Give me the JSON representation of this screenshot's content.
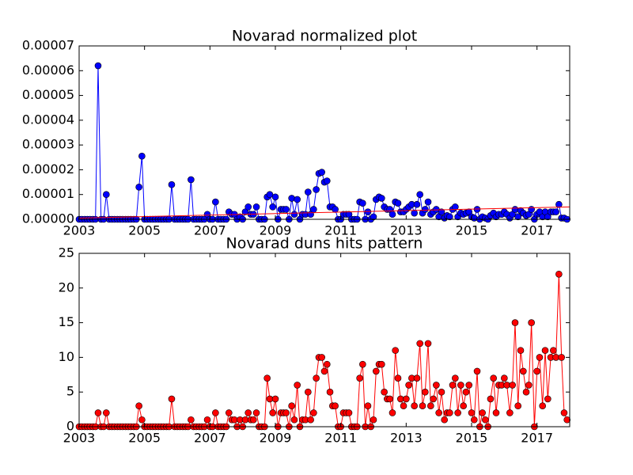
{
  "chart_data": [
    {
      "type": "line",
      "title": "Novarad normalized plot",
      "xlim": [
        2003,
        2018
      ],
      "xticks": [
        2003,
        2005,
        2007,
        2009,
        2011,
        2013,
        2015,
        2017
      ],
      "ylim": [
        0,
        7e-05
      ],
      "yticks": [
        {
          "value": 0,
          "label": "0.00000"
        },
        {
          "value": 1e-05,
          "label": "0.00001"
        },
        {
          "value": 2e-05,
          "label": "0.00002"
        },
        {
          "value": 3e-05,
          "label": "0.00003"
        },
        {
          "value": 4e-05,
          "label": "0.00004"
        },
        {
          "value": 5e-05,
          "label": "0.00005"
        },
        {
          "value": 6e-05,
          "label": "0.00006"
        },
        {
          "value": 7e-05,
          "label": "0.00007"
        }
      ],
      "series": [
        {
          "color": "#0000ff",
          "markers": true,
          "x": [
            2003.0,
            2003.08,
            2003.17,
            2003.25,
            2003.33,
            2003.42,
            2003.5,
            2003.58,
            2003.67,
            2003.75,
            2003.83,
            2003.92,
            2004.0,
            2004.08,
            2004.17,
            2004.25,
            2004.33,
            2004.42,
            2004.5,
            2004.58,
            2004.67,
            2004.75,
            2004.83,
            2004.92,
            2005.0,
            2005.08,
            2005.17,
            2005.25,
            2005.33,
            2005.42,
            2005.5,
            2005.58,
            2005.67,
            2005.75,
            2005.83,
            2005.92,
            2006.0,
            2006.08,
            2006.17,
            2006.25,
            2006.33,
            2006.42,
            2006.5,
            2006.58,
            2006.67,
            2006.75,
            2006.83,
            2006.92,
            2007.0,
            2007.08,
            2007.17,
            2007.25,
            2007.33,
            2007.42,
            2007.5,
            2007.58,
            2007.67,
            2007.75,
            2007.83,
            2007.92,
            2008.0,
            2008.08,
            2008.17,
            2008.25,
            2008.33,
            2008.42,
            2008.5,
            2008.58,
            2008.67,
            2008.75,
            2008.83,
            2008.92,
            2009.0,
            2009.08,
            2009.17,
            2009.25,
            2009.33,
            2009.42,
            2009.5,
            2009.58,
            2009.67,
            2009.75,
            2009.83,
            2009.92,
            2010.0,
            2010.08,
            2010.17,
            2010.25,
            2010.33,
            2010.42,
            2010.5,
            2010.58,
            2010.67,
            2010.75,
            2010.83,
            2010.92,
            2011.0,
            2011.08,
            2011.17,
            2011.25,
            2011.33,
            2011.42,
            2011.5,
            2011.58,
            2011.67,
            2011.75,
            2011.83,
            2011.92,
            2012.0,
            2012.08,
            2012.17,
            2012.25,
            2012.33,
            2012.42,
            2012.5,
            2012.58,
            2012.67,
            2012.75,
            2012.83,
            2012.92,
            2013.0,
            2013.08,
            2013.17,
            2013.25,
            2013.33,
            2013.42,
            2013.5,
            2013.58,
            2013.67,
            2013.75,
            2013.83,
            2013.92,
            2014.0,
            2014.08,
            2014.17,
            2014.25,
            2014.33,
            2014.42,
            2014.5,
            2014.58,
            2014.67,
            2014.75,
            2014.83,
            2014.92,
            2015.0,
            2015.08,
            2015.17,
            2015.25,
            2015.33,
            2015.42,
            2015.5,
            2015.58,
            2015.67,
            2015.75,
            2015.83,
            2015.92,
            2016.0,
            2016.08,
            2016.17,
            2016.25,
            2016.33,
            2016.42,
            2016.5,
            2016.58,
            2016.67,
            2016.75,
            2016.83,
            2016.92,
            2017.0,
            2017.08,
            2017.17,
            2017.25,
            2017.33,
            2017.42,
            2017.5,
            2017.58,
            2017.67,
            2017.75,
            2017.83,
            2017.92
          ],
          "values": [
            0,
            0,
            0,
            0,
            0,
            0,
            0,
            6.2e-05,
            0,
            0,
            1e-05,
            0,
            0,
            0,
            0,
            0,
            0,
            0,
            0,
            0,
            0,
            0,
            1.3e-05,
            2.55e-05,
            0,
            0,
            0,
            0,
            0,
            0,
            0,
            0,
            0,
            0,
            1.4e-05,
            0,
            0,
            0,
            0,
            0,
            0,
            1.6e-05,
            0,
            0,
            0,
            0,
            0,
            2e-06,
            0,
            0,
            7e-06,
            0,
            0,
            0,
            0,
            3e-06,
            2e-06,
            2e-06,
            0,
            1e-06,
            0,
            3e-06,
            5e-06,
            2e-06,
            2e-06,
            5e-06,
            0,
            0,
            0,
            9e-06,
            1e-05,
            5e-06,
            9e-06,
            0,
            4e-06,
            4e-06,
            4e-06,
            0,
            8.5e-06,
            2e-06,
            8e-06,
            0,
            2e-06,
            2e-06,
            1.1e-05,
            2e-06,
            4e-06,
            1.2e-05,
            1.85e-05,
            1.9e-05,
            1.5e-05,
            1.55e-05,
            5e-06,
            5e-06,
            4e-06,
            0,
            0,
            2e-06,
            2e-06,
            2e-06,
            0,
            0,
            0,
            7e-06,
            6.5e-06,
            0,
            3e-06,
            0,
            1e-06,
            8e-06,
            9e-06,
            8.5e-06,
            5e-06,
            4e-06,
            4e-06,
            2e-06,
            7e-06,
            6.5e-06,
            3e-06,
            3e-06,
            4e-06,
            5e-06,
            6e-06,
            2.5e-06,
            6e-06,
            1e-05,
            2.5e-06,
            4e-06,
            7e-06,
            2e-06,
            3e-06,
            4e-06,
            1e-06,
            3e-06,
            5e-07,
            1.5e-06,
            1e-06,
            4e-06,
            5e-06,
            1e-06,
            2.5e-06,
            2e-06,
            2.5e-06,
            3e-06,
            1e-06,
            5e-07,
            4e-06,
            0,
            1e-06,
            5e-07,
            0,
            1.5e-06,
            2.5e-06,
            1e-06,
            2e-06,
            2e-06,
            3e-06,
            2e-06,
            5e-07,
            2e-06,
            4e-06,
            1e-06,
            3.5e-06,
            2.5e-06,
            1.5e-06,
            2e-06,
            4e-06,
            0,
            2e-06,
            3e-06,
            1e-06,
            3e-06,
            1e-06,
            3e-06,
            3e-06,
            3e-06,
            6e-06,
            5e-07,
            5e-07,
            0
          ]
        },
        {
          "color": "#ff0000",
          "markers": false,
          "x": [
            2003,
            2018
          ],
          "values": [
            5e-07,
            5e-06
          ]
        }
      ]
    },
    {
      "type": "line",
      "title": "Novarad duns hits pattern",
      "xlim": [
        2003,
        2018
      ],
      "xticks": [
        2003,
        2005,
        2007,
        2009,
        2011,
        2013,
        2015,
        2017
      ],
      "ylim": [
        0,
        25
      ],
      "yticks": [
        0,
        5,
        10,
        15,
        20,
        25
      ],
      "series": [
        {
          "color": "#ff0000",
          "markers": true,
          "x": [
            2003.0,
            2003.08,
            2003.17,
            2003.25,
            2003.33,
            2003.42,
            2003.5,
            2003.58,
            2003.67,
            2003.75,
            2003.83,
            2003.92,
            2004.0,
            2004.08,
            2004.17,
            2004.25,
            2004.33,
            2004.42,
            2004.5,
            2004.58,
            2004.67,
            2004.75,
            2004.83,
            2004.92,
            2005.0,
            2005.08,
            2005.17,
            2005.25,
            2005.33,
            2005.42,
            2005.5,
            2005.58,
            2005.67,
            2005.75,
            2005.83,
            2005.92,
            2006.0,
            2006.08,
            2006.17,
            2006.25,
            2006.33,
            2006.42,
            2006.5,
            2006.58,
            2006.67,
            2006.75,
            2006.83,
            2006.92,
            2007.0,
            2007.08,
            2007.17,
            2007.25,
            2007.33,
            2007.42,
            2007.5,
            2007.58,
            2007.67,
            2007.75,
            2007.83,
            2007.92,
            2008.0,
            2008.08,
            2008.17,
            2008.25,
            2008.33,
            2008.42,
            2008.5,
            2008.58,
            2008.67,
            2008.75,
            2008.83,
            2008.92,
            2009.0,
            2009.08,
            2009.17,
            2009.25,
            2009.33,
            2009.42,
            2009.5,
            2009.58,
            2009.67,
            2009.75,
            2009.83,
            2009.92,
            2010.0,
            2010.08,
            2010.17,
            2010.25,
            2010.33,
            2010.42,
            2010.5,
            2010.58,
            2010.67,
            2010.75,
            2010.83,
            2010.92,
            2011.0,
            2011.08,
            2011.17,
            2011.25,
            2011.33,
            2011.42,
            2011.5,
            2011.58,
            2011.67,
            2011.75,
            2011.83,
            2011.92,
            2012.0,
            2012.08,
            2012.17,
            2012.25,
            2012.33,
            2012.42,
            2012.5,
            2012.58,
            2012.67,
            2012.75,
            2012.83,
            2012.92,
            2013.0,
            2013.08,
            2013.17,
            2013.25,
            2013.33,
            2013.42,
            2013.5,
            2013.58,
            2013.67,
            2013.75,
            2013.83,
            2013.92,
            2014.0,
            2014.08,
            2014.17,
            2014.25,
            2014.33,
            2014.42,
            2014.5,
            2014.58,
            2014.67,
            2014.75,
            2014.83,
            2014.92,
            2015.0,
            2015.08,
            2015.17,
            2015.25,
            2015.33,
            2015.42,
            2015.5,
            2015.58,
            2015.67,
            2015.75,
            2015.83,
            2015.92,
            2016.0,
            2016.08,
            2016.17,
            2016.25,
            2016.33,
            2016.42,
            2016.5,
            2016.58,
            2016.67,
            2016.75,
            2016.83,
            2016.92,
            2017.0,
            2017.08,
            2017.17,
            2017.25,
            2017.33,
            2017.42,
            2017.5,
            2017.58,
            2017.67,
            2017.75,
            2017.83,
            2017.92
          ],
          "values": [
            0,
            0,
            0,
            0,
            0,
            0,
            0,
            2,
            0,
            0,
            2,
            0,
            0,
            0,
            0,
            0,
            0,
            0,
            0,
            0,
            0,
            0,
            3,
            1,
            0,
            0,
            0,
            0,
            0,
            0,
            0,
            0,
            0,
            0,
            4,
            0,
            0,
            0,
            0,
            0,
            0,
            1,
            0,
            0,
            0,
            0,
            0,
            1,
            0,
            0,
            2,
            0,
            0,
            0,
            0,
            2,
            1,
            1,
            0,
            1,
            0,
            1,
            2,
            1,
            1,
            2,
            0,
            0,
            0,
            7,
            4,
            2,
            4,
            0,
            2,
            2,
            2,
            0,
            3,
            1,
            6,
            0,
            1,
            1,
            5,
            1,
            2,
            7,
            10,
            10,
            8,
            9,
            5,
            3,
            3,
            0,
            0,
            2,
            2,
            2,
            0,
            0,
            0,
            7,
            9,
            0,
            3,
            0,
            1,
            8,
            9,
            9,
            5,
            4,
            4,
            2,
            11,
            7,
            4,
            3,
            4,
            6,
            7,
            3,
            7,
            12,
            3,
            5,
            12,
            3,
            4,
            6,
            2,
            5,
            1,
            2,
            2,
            6,
            7,
            2,
            6,
            3,
            5,
            6,
            2,
            1,
            8,
            0,
            2,
            1,
            0,
            4,
            7,
            2,
            6,
            6,
            7,
            6,
            2,
            6,
            15,
            3,
            11,
            8,
            5,
            6,
            15,
            0,
            8,
            10,
            3,
            11,
            4,
            10,
            11,
            10,
            22,
            10,
            2,
            1
          ]
        }
      ]
    }
  ]
}
